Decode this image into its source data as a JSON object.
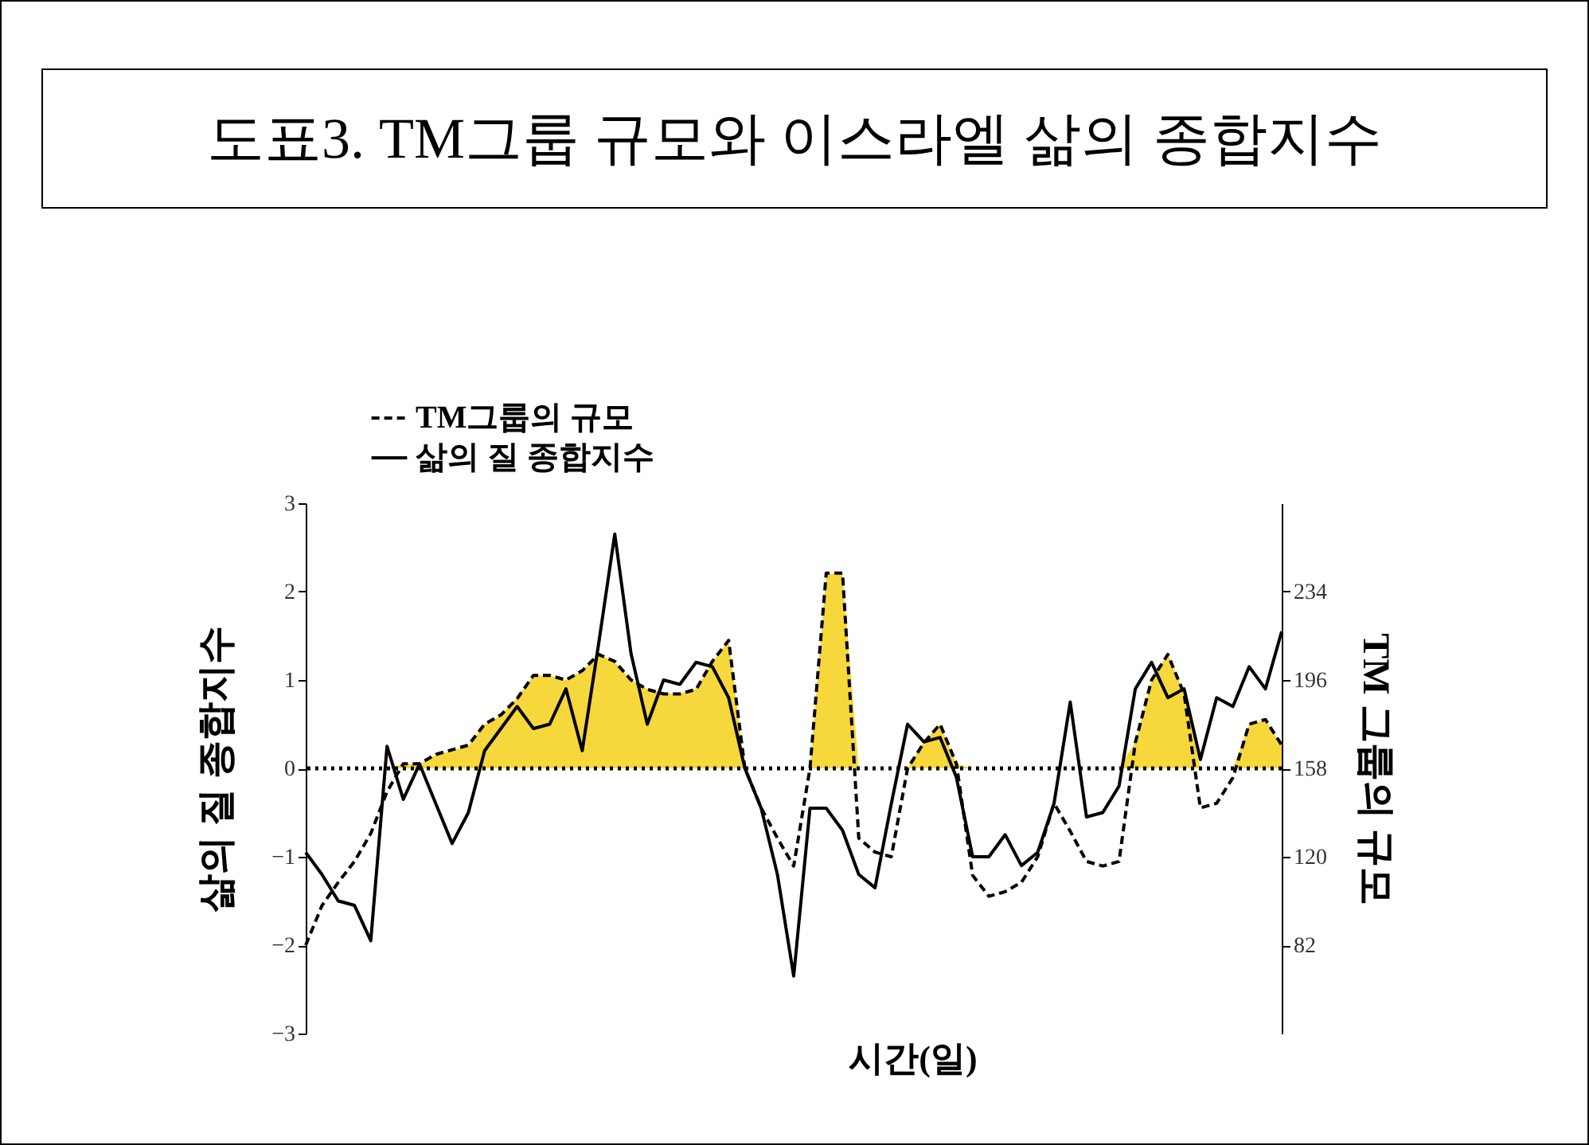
{
  "chart_data": {
    "type": "line",
    "title": "도표3. TM그룹 규모와 이스라엘 삶의 종합지수",
    "xlabel": "시간(일)",
    "ylabel": "삶의 질 종합지수",
    "y2label": "TM 그룹의 규모",
    "categories": [
      null,
      null,
      null,
      null,
      null,
      null,
      null,
      null,
      null,
      null,
      null,
      null,
      null,
      null,
      null,
      null,
      null,
      null,
      null,
      null,
      null,
      null,
      null,
      null,
      null,
      null,
      null,
      null,
      null,
      null,
      null,
      null,
      null,
      null,
      null,
      null,
      null,
      null,
      null,
      null,
      null,
      null,
      null,
      null,
      null,
      null,
      null,
      null,
      null,
      null,
      null,
      null,
      null,
      null,
      null,
      null,
      null,
      null,
      null,
      null,
      null
    ],
    "series": [
      {
        "type": "area",
        "color": "#f7d83c",
        "values": [
          0,
          0,
          0,
          0,
          0,
          0,
          0.05,
          0.05,
          0.15,
          0.2,
          0.25,
          0.5,
          0.6,
          0.8,
          1.05,
          1.05,
          1.0,
          1.1,
          1.3,
          1.2,
          1.0,
          0.9,
          0.85,
          0.85,
          0.9,
          1.2,
          1.45,
          0,
          0,
          0,
          0,
          0,
          2.2,
          2.2,
          0,
          0,
          0,
          0,
          0.3,
          0.5,
          0.05,
          0,
          0,
          0,
          0,
          0,
          0,
          0,
          0,
          0,
          0,
          0.3,
          1.0,
          1.3,
          0.85,
          0,
          0,
          0,
          0.5,
          0.55,
          0.25
        ]
      },
      {
        "name": "TM그룹의 규모",
        "color": "#000000",
        "axis": "y2",
        "line_style": "dashed",
        "values": [
          82,
          99,
          109,
          118,
          130,
          148,
          160,
          160,
          164,
          166,
          168,
          177,
          181,
          188,
          198,
          198,
          196,
          200,
          207,
          204,
          196,
          192,
          190,
          190,
          192,
          204,
          213,
          158,
          141,
          128,
          116,
          158,
          242,
          242,
          128,
          122,
          120,
          158,
          169,
          177,
          160,
          112,
          103,
          105,
          109,
          120,
          143,
          131,
          118,
          116,
          118,
          169,
          196,
          207,
          190,
          141,
          143,
          154,
          177,
          179,
          168
        ]
      },
      {
        "name": "삶의 질 종합지수",
        "color": "#000000",
        "line_style": "solid",
        "values": [
          -0.95,
          -1.2,
          -1.5,
          -1.55,
          -1.95,
          0.25,
          -0.35,
          0.05,
          -0.4,
          -0.85,
          -0.5,
          0.2,
          0.45,
          0.7,
          0.45,
          0.5,
          0.9,
          0.2,
          1.4,
          2.65,
          1.3,
          0.5,
          1.0,
          0.95,
          1.2,
          1.15,
          0.8,
          0.0,
          -0.45,
          -1.2,
          -2.35,
          -0.45,
          -0.45,
          -0.7,
          -1.2,
          -1.35,
          -0.4,
          0.5,
          0.3,
          0.35,
          -0.1,
          -1.0,
          -1.0,
          -0.75,
          -1.1,
          -0.95,
          -0.4,
          0.75,
          -0.55,
          -0.5,
          -0.2,
          0.9,
          1.2,
          0.8,
          0.9,
          0.1,
          0.8,
          0.7,
          1.15,
          0.9,
          1.55
        ]
      }
    ],
    "ylim": [
      -3,
      3
    ],
    "yticks": [
      -3,
      -2,
      -1,
      0,
      1,
      2,
      3
    ],
    "y2lim": [
      44,
      272
    ],
    "y2ticks": [
      82,
      120,
      158,
      196,
      234
    ],
    "ref_lines": [
      {
        "axis": "y",
        "value": 0,
        "color": "#000000",
        "line_style": "dotted"
      }
    ],
    "legend": "top left",
    "marker": "none",
    "grid": false
  }
}
